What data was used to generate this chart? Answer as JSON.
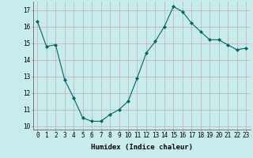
{
  "x": [
    0,
    1,
    2,
    3,
    4,
    5,
    6,
    7,
    8,
    9,
    10,
    11,
    12,
    13,
    14,
    15,
    16,
    17,
    18,
    19,
    20,
    21,
    22,
    23
  ],
  "y": [
    16.3,
    14.8,
    14.9,
    12.8,
    11.7,
    10.5,
    10.3,
    10.3,
    10.7,
    11.0,
    11.5,
    12.9,
    14.4,
    15.1,
    16.0,
    17.2,
    16.9,
    16.2,
    15.7,
    15.2,
    15.2,
    14.9,
    14.6,
    14.7
  ],
  "line_color": "#006666",
  "marker": "D",
  "marker_size": 2,
  "bg_color": "#c8ecec",
  "grid_color": "#c0a0a0",
  "xlabel": "Humidex (Indice chaleur)",
  "ylim": [
    9.8,
    17.5
  ],
  "xlim": [
    -0.5,
    23.5
  ],
  "yticks": [
    10,
    11,
    12,
    13,
    14,
    15,
    16,
    17
  ],
  "xticks": [
    0,
    1,
    2,
    3,
    4,
    5,
    6,
    7,
    8,
    9,
    10,
    11,
    12,
    13,
    14,
    15,
    16,
    17,
    18,
    19,
    20,
    21,
    22,
    23
  ],
  "xlabel_fontsize": 6.5,
  "tick_fontsize": 5.5
}
